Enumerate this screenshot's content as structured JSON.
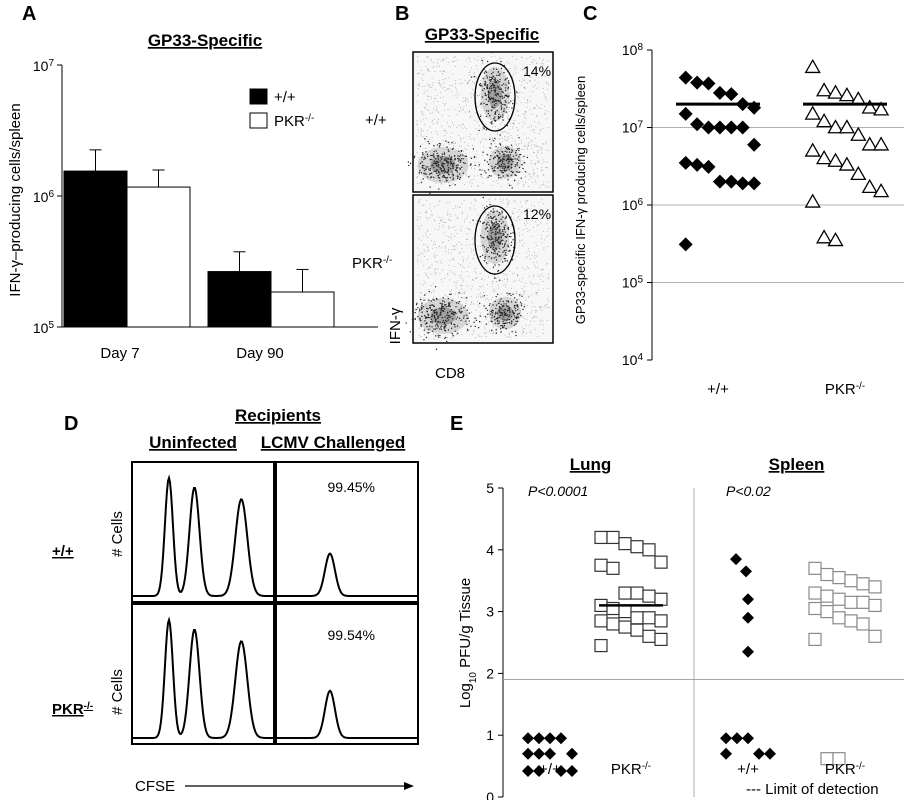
{
  "panels": {
    "A": {
      "label": "A",
      "chart_data": {
        "type": "bar",
        "title": "GP33-Specific",
        "ylabel": "IFN-γ–producing cells/spleen",
        "yscale": "log",
        "ylim": [
          100000,
          10000000
        ],
        "yticks": [
          {
            "value": 100000,
            "base": "10",
            "exp": "5"
          },
          {
            "value": 1000000,
            "base": "10",
            "exp": "6"
          },
          {
            "value": 10000000,
            "base": "10",
            "exp": "7"
          }
        ],
        "categories": [
          "Day 7",
          "Day 90"
        ],
        "series": [
          {
            "name": "+/+",
            "name_sup": "",
            "fill": "#000000",
            "values": [
              1550000,
              265000
            ],
            "errors": [
              2250000,
              375000
            ]
          },
          {
            "name": "PKR",
            "name_sup": "-/-",
            "fill": "#ffffff",
            "values": [
              1170000,
              185000
            ],
            "errors": [
              1580000,
              275000
            ]
          }
        ]
      }
    },
    "B": {
      "label": "B",
      "title": "GP33-Specific",
      "rows": [
        {
          "genotype": "+/+",
          "genotype_sup": "",
          "percent": "14%"
        },
        {
          "genotype": "PKR",
          "genotype_sup": "-/-",
          "percent": "12%"
        }
      ],
      "xlabel": "CD8",
      "ylabel": "IFN-γ"
    },
    "C": {
      "label": "C",
      "chart_data": {
        "type": "scatter",
        "ylabel": "GP33-specific IFN-γ producing cells/spleen",
        "yscale": "log",
        "ylim": [
          10000,
          100000000
        ],
        "yticks": [
          {
            "value": 10000,
            "base": "10",
            "exp": "4"
          },
          {
            "value": 100000,
            "base": "10",
            "exp": "5"
          },
          {
            "value": 1000000,
            "base": "10",
            "exp": "6"
          },
          {
            "value": 10000000,
            "base": "10",
            "exp": "7"
          },
          {
            "value": 100000000,
            "base": "10",
            "exp": "8"
          }
        ],
        "groups": [
          {
            "name": "+/+",
            "name_sup": "",
            "marker": "diamond-filled",
            "mean": 20000000,
            "values": [
              44000000,
              38000000,
              37000000,
              28000000,
              27000000,
              20000000,
              18000000,
              15000000,
              11000000,
              10000000,
              10000000,
              10000000,
              10000000,
              6000000,
              3500000,
              3300000,
              3100000,
              2000000,
              2000000,
              1900000,
              1900000,
              310000
            ]
          },
          {
            "name": "PKR",
            "name_sup": "-/-",
            "marker": "triangle-open",
            "mean": 20000000,
            "values": [
              60000000,
              30000000,
              28000000,
              26000000,
              23000000,
              18000000,
              17000000,
              15000000,
              12000000,
              10000000,
              10000000,
              8000000,
              6000000,
              6000000,
              5000000,
              4000000,
              3700000,
              3300000,
              2500000,
              1700000,
              1500000,
              1100000,
              380000,
              350000
            ]
          }
        ]
      }
    },
    "D": {
      "label": "D",
      "header": "Recipients",
      "columns": [
        "Uninfected",
        "LCMV Challenged"
      ],
      "rows": [
        {
          "genotype": "+/+",
          "genotype_sup": "",
          "percent": "99.45%"
        },
        {
          "genotype": "PKR",
          "genotype_sup": "-/-",
          "percent": "99.54%"
        }
      ],
      "ylabel": "# Cells",
      "xlabel": "CFSE"
    },
    "E": {
      "label": "E",
      "chart_data": {
        "type": "scatter",
        "ylabel_pre": "Log",
        "ylabel_sub": "10",
        "ylabel_post": " PFU/g Tissue",
        "ylim": [
          0,
          5
        ],
        "yticks": [
          0,
          1,
          2,
          3,
          4,
          5
        ],
        "limit_of_detection": 1.9,
        "footnote": "--- Limit of detection",
        "tissues": [
          {
            "name": "Lung",
            "pvalue": "P<0.0001",
            "groups": [
              {
                "name": "+/+",
                "name_sup": "",
                "marker": "diamond-filled",
                "mean": null,
                "values": [
                  0.95,
                  0.95,
                  0.95,
                  0.95,
                  0.7,
                  0.7,
                  0.7,
                  0.7,
                  0.42,
                  0.42,
                  0.42,
                  0.42
                ]
              },
              {
                "name": "PKR",
                "name_sup": "-/-",
                "marker": "square-open",
                "mean": 3.1,
                "values": [
                  4.2,
                  4.2,
                  4.1,
                  4.05,
                  4.0,
                  3.8,
                  3.75,
                  3.7,
                  3.3,
                  3.3,
                  3.25,
                  3.2,
                  3.1,
                  3.05,
                  3.0,
                  2.9,
                  2.9,
                  2.85,
                  2.85,
                  2.8,
                  2.75,
                  2.7,
                  2.6,
                  2.55,
                  2.45
                ]
              }
            ]
          },
          {
            "name": "Spleen",
            "pvalue": "P<0.02",
            "groups": [
              {
                "name": "+/+",
                "name_sup": "",
                "marker": "diamond-filled",
                "mean": null,
                "values": [
                  3.85,
                  3.65,
                  3.2,
                  2.9,
                  2.35,
                  0.95,
                  0.95,
                  0.95,
                  0.7,
                  0.7,
                  0.7
                ]
              },
              {
                "name": "PKR",
                "name_sup": "-/-",
                "marker": "square-open-gray",
                "mean": null,
                "values": [
                  3.7,
                  3.6,
                  3.55,
                  3.5,
                  3.45,
                  3.4,
                  3.3,
                  3.25,
                  3.2,
                  3.15,
                  3.15,
                  3.1,
                  3.05,
                  3.0,
                  2.9,
                  2.85,
                  2.8,
                  2.6,
                  2.55,
                  0.62,
                  0.62
                ]
              }
            ]
          }
        ]
      }
    }
  }
}
